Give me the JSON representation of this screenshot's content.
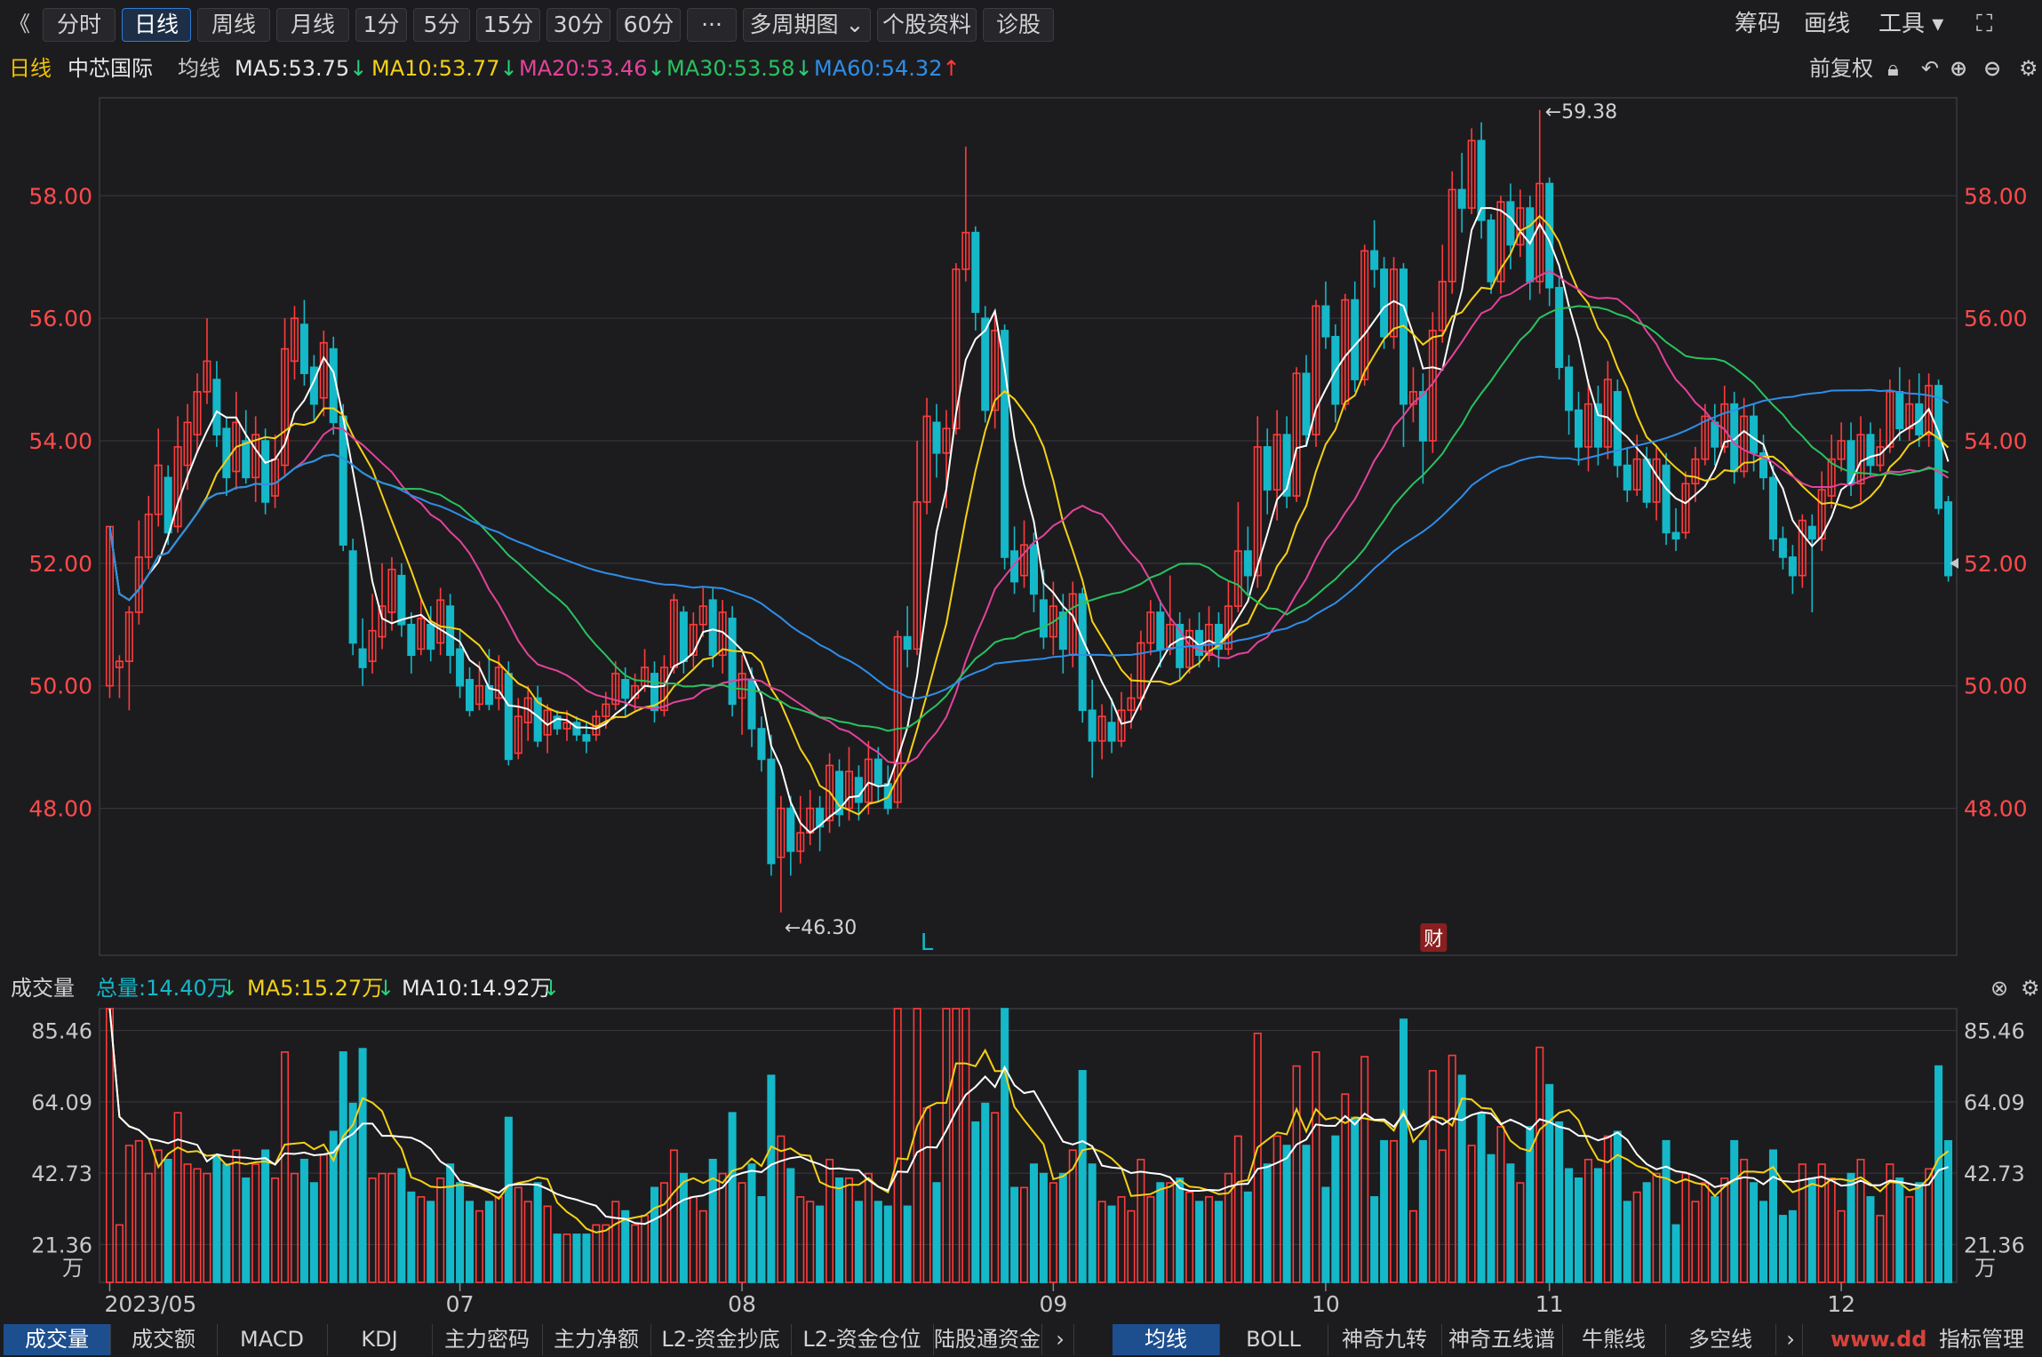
{
  "toolbar": {
    "back": "《",
    "periods": [
      "分时",
      "日线",
      "周线",
      "月线",
      "1分",
      "5分",
      "15分",
      "30分",
      "60分",
      "···",
      "多周期图",
      "个股资料",
      "诊股"
    ],
    "active_period": "日线",
    "right": [
      "筹码",
      "画线",
      "工具"
    ]
  },
  "ma_line": {
    "period": "日线",
    "stock": "中芯国际",
    "label": "均线",
    "items": [
      {
        "text": "MA5:53.75",
        "arrow": "↓",
        "color": "#e6e6e6",
        "arrow_color": "#27d27a"
      },
      {
        "text": "MA10:53.77",
        "arrow": "↓",
        "color": "#f5d115",
        "arrow_color": "#27d27a"
      },
      {
        "text": "MA20:53.46",
        "arrow": "↓",
        "color": "#e3439a",
        "arrow_color": "#27d27a"
      },
      {
        "text": "MA30:53.58",
        "arrow": "↓",
        "color": "#29c25f",
        "arrow_color": "#27d27a"
      },
      {
        "text": "MA60:54.32",
        "arrow": "↑",
        "color": "#2f8ee8",
        "arrow_color": "#ff3b3b"
      }
    ],
    "adjust": "前复权"
  },
  "volume_header": {
    "title": "成交量",
    "total": "总量:14.40万",
    "total_arrow": "↓",
    "ma5": "MA5:15.27万",
    "ma5_arrow": "↓",
    "ma10": "MA10:14.92万",
    "ma10_arrow": "↓"
  },
  "bottom_tabs_left": [
    "成交量",
    "成交额",
    "MACD",
    "KDJ",
    "主力密码",
    "主力净额",
    "L2-资金抄底",
    "L2-资金仓位",
    "陆股通资金"
  ],
  "bottom_tabs_right": [
    "均线",
    "BOLL",
    "神奇九转",
    "神奇五线谱",
    "牛熊线",
    "多空线"
  ],
  "bottom_right": "指标管理",
  "watermark": "www.dd",
  "colors": {
    "up": "#ff3b3b",
    "down": "#14b8c8",
    "grid": "#3a3a3e",
    "bg": "#1c1c1f"
  },
  "chart_data": {
    "type": "candlestick",
    "stock": "中芯国际",
    "y_ticks": [
      "58.00",
      "56.00",
      "54.00",
      "52.00",
      "50.00",
      "48.00"
    ],
    "ylim": [
      45.6,
      59.6
    ],
    "x_ticks": [
      "2023/05",
      "07",
      "08",
      "09",
      "10",
      "11",
      "12"
    ],
    "annotations": [
      {
        "text": "←59.38",
        "value": 59.38
      },
      {
        "text": "←46.30",
        "value": 46.3
      },
      {
        "text": "L",
        "type": "marker"
      },
      {
        "text": "财",
        "type": "marker"
      }
    ],
    "current_price_marker": 52.0,
    "candles": [
      [
        50,
        52.6,
        52.6,
        49.8
      ],
      [
        50.3,
        50.4,
        50.5,
        49.8
      ],
      [
        50.4,
        51.2,
        51.3,
        49.6
      ],
      [
        51.2,
        52.1,
        52.7,
        51.0
      ],
      [
        52.1,
        52.8,
        53.1,
        51.9
      ],
      [
        52.8,
        53.6,
        54.2,
        52.6
      ],
      [
        53.4,
        52.5,
        53.6,
        52.3
      ],
      [
        52.6,
        53.9,
        54.4,
        52.5
      ],
      [
        53.6,
        54.3,
        54.6,
        53.2
      ],
      [
        54.1,
        54.8,
        55.1,
        53.8
      ],
      [
        54.8,
        55.3,
        56.0,
        54.6
      ],
      [
        55.0,
        54.1,
        55.3,
        53.9
      ],
      [
        54.2,
        53.4,
        54.4,
        53.1
      ],
      [
        53.5,
        54.3,
        54.8,
        53.2
      ],
      [
        54.0,
        53.4,
        54.5,
        53.3
      ],
      [
        53.4,
        54.1,
        54.4,
        53.0
      ],
      [
        54.0,
        53.0,
        54.2,
        52.8
      ],
      [
        53.1,
        53.7,
        54.1,
        52.9
      ],
      [
        53.6,
        55.5,
        56.0,
        53.4
      ],
      [
        55.3,
        56.0,
        56.2,
        55.0
      ],
      [
        55.9,
        55.1,
        56.3,
        54.9
      ],
      [
        55.2,
        54.6,
        55.4,
        54.3
      ],
      [
        54.7,
        55.6,
        55.8,
        54.4
      ],
      [
        55.5,
        54.3,
        55.7,
        54.1
      ],
      [
        54.4,
        52.3,
        54.6,
        52.2
      ],
      [
        52.2,
        50.7,
        52.4,
        50.5
      ],
      [
        50.6,
        50.3,
        51.1,
        50.0
      ],
      [
        50.4,
        50.9,
        51.5,
        50.2
      ],
      [
        50.8,
        51.3,
        52.0,
        50.6
      ],
      [
        51.2,
        51.9,
        52.1,
        50.9
      ],
      [
        51.8,
        51.0,
        52.0,
        50.8
      ],
      [
        51.0,
        50.5,
        51.2,
        50.2
      ],
      [
        50.6,
        51.1,
        51.4,
        50.5
      ],
      [
        51.0,
        50.6,
        51.3,
        50.4
      ],
      [
        50.7,
        51.4,
        51.6,
        50.5
      ],
      [
        51.3,
        50.5,
        51.5,
        50.2
      ],
      [
        50.6,
        50.0,
        50.9,
        49.8
      ],
      [
        50.1,
        49.6,
        50.3,
        49.5
      ],
      [
        49.7,
        50.0,
        50.4,
        49.6
      ],
      [
        50.0,
        49.7,
        50.6,
        49.6
      ],
      [
        49.8,
        50.3,
        50.5,
        49.6
      ],
      [
        50.2,
        48.8,
        50.4,
        48.7
      ],
      [
        48.9,
        49.5,
        49.8,
        48.8
      ],
      [
        49.4,
        49.8,
        50.0,
        49.1
      ],
      [
        49.8,
        49.1,
        50.0,
        49.0
      ],
      [
        49.2,
        49.6,
        49.7,
        48.9
      ],
      [
        49.5,
        49.3,
        49.6,
        49.2
      ],
      [
        49.3,
        49.4,
        49.6,
        49.1
      ],
      [
        49.4,
        49.2,
        49.5,
        49.1
      ],
      [
        49.2,
        49.1,
        49.4,
        48.9
      ],
      [
        49.2,
        49.5,
        49.6,
        49.1
      ],
      [
        49.5,
        49.7,
        49.9,
        49.3
      ],
      [
        49.7,
        50.2,
        50.4,
        49.6
      ],
      [
        50.1,
        49.8,
        50.3,
        49.5
      ],
      [
        49.8,
        50.0,
        50.2,
        49.6
      ],
      [
        50.0,
        50.3,
        50.6,
        49.9
      ],
      [
        50.2,
        49.6,
        50.4,
        49.4
      ],
      [
        49.6,
        50.3,
        50.5,
        49.5
      ],
      [
        50.3,
        51.4,
        51.5,
        50.2
      ],
      [
        51.2,
        50.4,
        51.3,
        50.2
      ],
      [
        50.5,
        51.0,
        51.2,
        50.3
      ],
      [
        51.0,
        51.3,
        51.6,
        50.8
      ],
      [
        51.4,
        50.5,
        51.6,
        50.3
      ],
      [
        50.5,
        51.2,
        51.4,
        50.2
      ],
      [
        51.1,
        49.7,
        51.3,
        49.5
      ],
      [
        49.8,
        50.2,
        50.5,
        49.2
      ],
      [
        50.1,
        49.3,
        50.3,
        49.0
      ],
      [
        49.3,
        48.8,
        49.5,
        48.6
      ],
      [
        48.8,
        47.1,
        49.2,
        46.9
      ],
      [
        47.2,
        48.0,
        48.2,
        46.3
      ],
      [
        48.0,
        47.3,
        48.2,
        46.9
      ],
      [
        47.3,
        47.6,
        48.2,
        47.1
      ],
      [
        47.6,
        48.0,
        48.3,
        47.4
      ],
      [
        48.0,
        47.7,
        48.2,
        47.3
      ],
      [
        47.8,
        48.7,
        48.9,
        47.6
      ],
      [
        48.6,
        47.9,
        48.8,
        47.7
      ],
      [
        48.0,
        48.6,
        49.0,
        47.8
      ],
      [
        48.5,
        48.1,
        48.7,
        47.8
      ],
      [
        48.1,
        48.8,
        49.1,
        47.9
      ],
      [
        48.8,
        48.4,
        49.0,
        48.1
      ],
      [
        48.4,
        48.0,
        48.7,
        47.9
      ],
      [
        48.1,
        50.8,
        50.9,
        48.0
      ],
      [
        50.8,
        50.6,
        51.3,
        50.3
      ],
      [
        50.6,
        53.0,
        54.0,
        50.5
      ],
      [
        53.0,
        54.4,
        54.7,
        52.8
      ],
      [
        54.3,
        53.8,
        54.6,
        53.4
      ],
      [
        53.8,
        54.2,
        54.5,
        52.9
      ],
      [
        54.2,
        56.8,
        56.9,
        54.1
      ],
      [
        56.8,
        57.4,
        58.8,
        56.6
      ],
      [
        57.4,
        56.1,
        57.5,
        55.8
      ],
      [
        56.0,
        54.5,
        56.2,
        54.3
      ],
      [
        54.5,
        55.8,
        56.1,
        54.2
      ],
      [
        55.8,
        52.1,
        55.9,
        51.9
      ],
      [
        52.2,
        51.7,
        52.6,
        51.5
      ],
      [
        51.8,
        52.3,
        52.7,
        51.6
      ],
      [
        52.3,
        51.5,
        52.5,
        51.2
      ],
      [
        51.4,
        50.8,
        51.9,
        50.6
      ],
      [
        50.8,
        51.3,
        51.7,
        50.5
      ],
      [
        51.2,
        50.6,
        51.5,
        50.2
      ],
      [
        50.5,
        51.5,
        51.7,
        50.3
      ],
      [
        51.5,
        49.6,
        51.6,
        49.4
      ],
      [
        49.6,
        49.1,
        50.1,
        48.5
      ],
      [
        49.1,
        49.5,
        49.7,
        48.8
      ],
      [
        49.4,
        49.1,
        49.8,
        48.9
      ],
      [
        49.1,
        49.6,
        49.9,
        49.0
      ],
      [
        49.6,
        49.8,
        50.2,
        49.3
      ],
      [
        49.8,
        50.7,
        50.9,
        49.6
      ],
      [
        50.7,
        51.2,
        51.4,
        50.5
      ],
      [
        51.2,
        50.6,
        51.4,
        50.3
      ],
      [
        50.6,
        51.0,
        51.8,
        50.5
      ],
      [
        51.0,
        50.3,
        51.2,
        50.1
      ],
      [
        50.3,
        50.9,
        51.1,
        50.2
      ],
      [
        50.9,
        50.5,
        51.2,
        50.3
      ],
      [
        50.5,
        51.0,
        51.3,
        50.4
      ],
      [
        51.0,
        50.6,
        51.2,
        50.3
      ],
      [
        50.6,
        51.3,
        51.7,
        50.5
      ],
      [
        51.3,
        52.2,
        53.0,
        51.2
      ],
      [
        52.2,
        51.8,
        52.6,
        51.5
      ],
      [
        51.8,
        53.9,
        54.4,
        51.6
      ],
      [
        53.9,
        53.2,
        54.2,
        52.8
      ],
      [
        53.2,
        54.1,
        54.5,
        52.7
      ],
      [
        54.1,
        53.1,
        54.4,
        52.9
      ],
      [
        53.1,
        55.1,
        55.2,
        53.0
      ],
      [
        55.1,
        54.1,
        55.4,
        53.9
      ],
      [
        54.1,
        56.2,
        56.3,
        53.9
      ],
      [
        56.2,
        55.7,
        56.6,
        55.5
      ],
      [
        55.7,
        54.6,
        55.9,
        54.3
      ],
      [
        54.6,
        56.3,
        56.4,
        54.5
      ],
      [
        56.3,
        55.0,
        56.6,
        54.8
      ],
      [
        55.0,
        57.1,
        57.2,
        54.9
      ],
      [
        57.1,
        56.8,
        57.6,
        56.5
      ],
      [
        56.8,
        55.7,
        57.0,
        55.5
      ],
      [
        55.7,
        56.8,
        57.0,
        55.5
      ],
      [
        56.8,
        54.6,
        56.9,
        53.9
      ],
      [
        54.6,
        54.8,
        55.2,
        54.3
      ],
      [
        54.8,
        54.0,
        55.1,
        53.3
      ],
      [
        54.0,
        55.8,
        56.1,
        53.8
      ],
      [
        55.8,
        56.6,
        57.2,
        55.6
      ],
      [
        56.6,
        58.1,
        58.4,
        56.4
      ],
      [
        58.1,
        57.8,
        58.7,
        57.4
      ],
      [
        57.8,
        58.9,
        59.1,
        57.7
      ],
      [
        58.9,
        57.6,
        59.2,
        57.3
      ],
      [
        57.6,
        56.6,
        57.7,
        56.4
      ],
      [
        56.6,
        57.9,
        58.0,
        56.4
      ],
      [
        57.9,
        57.2,
        58.2,
        56.8
      ],
      [
        57.2,
        57.8,
        58.1,
        57.0
      ],
      [
        57.8,
        56.6,
        58.0,
        56.3
      ],
      [
        56.6,
        58.2,
        59.4,
        56.4
      ],
      [
        58.2,
        56.5,
        58.3,
        56.2
      ],
      [
        56.5,
        55.2,
        56.7,
        55.0
      ],
      [
        55.2,
        54.5,
        55.4,
        54.1
      ],
      [
        54.5,
        53.9,
        54.8,
        53.6
      ],
      [
        53.9,
        54.6,
        55.0,
        53.5
      ],
      [
        54.6,
        53.9,
        54.9,
        53.6
      ],
      [
        53.9,
        55.0,
        55.3,
        53.7
      ],
      [
        54.8,
        53.6,
        55.0,
        53.4
      ],
      [
        53.6,
        53.2,
        53.9,
        53.0
      ],
      [
        53.2,
        53.7,
        54.1,
        53.1
      ],
      [
        53.7,
        53.0,
        53.9,
        52.9
      ],
      [
        53.0,
        53.7,
        53.9,
        52.7
      ],
      [
        53.6,
        52.5,
        53.8,
        52.3
      ],
      [
        52.5,
        52.4,
        52.9,
        52.2
      ],
      [
        52.5,
        53.3,
        53.5,
        52.4
      ],
      [
        53.3,
        53.7,
        53.9,
        53.0
      ],
      [
        53.7,
        54.4,
        54.6,
        53.6
      ],
      [
        54.3,
        53.9,
        54.6,
        53.6
      ],
      [
        53.9,
        54.6,
        54.9,
        53.8
      ],
      [
        54.6,
        53.5,
        54.8,
        53.3
      ],
      [
        53.5,
        54.4,
        54.7,
        53.4
      ],
      [
        54.4,
        53.8,
        54.6,
        53.5
      ],
      [
        53.8,
        53.4,
        54.1,
        53.2
      ],
      [
        53.4,
        52.4,
        53.6,
        52.2
      ],
      [
        52.4,
        52.1,
        52.6,
        51.9
      ],
      [
        52.1,
        51.8,
        52.3,
        51.5
      ],
      [
        51.8,
        52.7,
        52.8,
        51.6
      ],
      [
        52.6,
        52.4,
        52.8,
        51.2
      ],
      [
        52.4,
        53.2,
        53.5,
        52.2
      ],
      [
        53.1,
        53.7,
        54.1,
        52.9
      ],
      [
        53.7,
        54.0,
        54.3,
        53.5
      ],
      [
        54.0,
        53.3,
        54.3,
        53.1
      ],
      [
        53.3,
        54.1,
        54.4,
        53.0
      ],
      [
        54.1,
        53.6,
        54.3,
        53.4
      ],
      [
        53.6,
        53.9,
        54.2,
        53.5
      ],
      [
        53.9,
        54.8,
        55.0,
        53.8
      ],
      [
        54.8,
        54.2,
        55.2,
        54.0
      ],
      [
        54.2,
        54.6,
        55.0,
        54.0
      ],
      [
        54.6,
        54.1,
        55.1,
        53.9
      ],
      [
        54.1,
        54.9,
        55.1,
        53.9
      ],
      [
        54.9,
        52.9,
        55.0,
        52.8
      ],
      [
        53.0,
        51.8,
        53.1,
        51.7
      ]
    ],
    "volume": {
      "unit": "万",
      "y_ticks": [
        "85.46",
        "64.09",
        "42.73",
        "21.36"
      ],
      "ylim": [
        10,
        92
      ]
    }
  }
}
